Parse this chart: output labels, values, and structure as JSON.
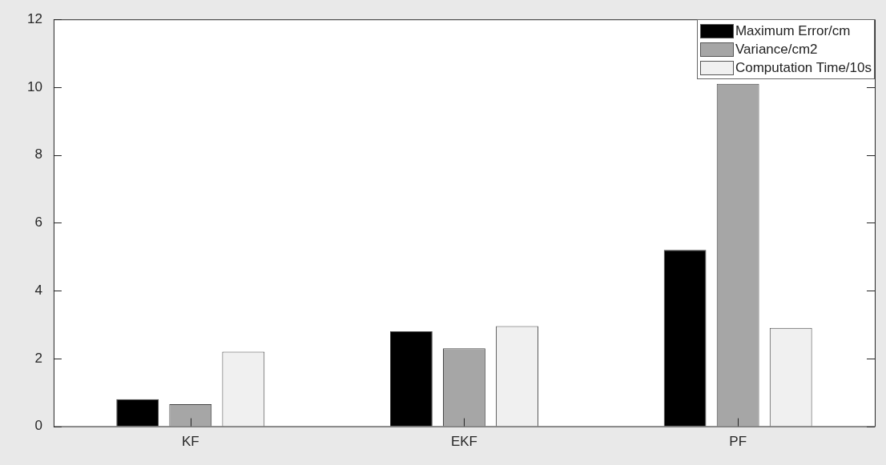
{
  "chart_data": {
    "type": "bar",
    "categories": [
      "KF",
      "EKF",
      "PF"
    ],
    "series": [
      {
        "name": "Maximum Error/cm",
        "color": "#000000",
        "values": [
          0.8,
          2.8,
          5.2
        ]
      },
      {
        "name": "Variance/cm2",
        "color": "#a6a6a6",
        "values": [
          0.65,
          2.3,
          10.1
        ]
      },
      {
        "name": "Computation Time/10s",
        "color": "#f0f0f0",
        "values": [
          2.2,
          2.95,
          2.9
        ]
      }
    ],
    "ylim": [
      0,
      12
    ],
    "yticks": [
      0,
      2,
      4,
      6,
      8,
      10,
      12
    ],
    "grid": false,
    "legend": "top right"
  }
}
